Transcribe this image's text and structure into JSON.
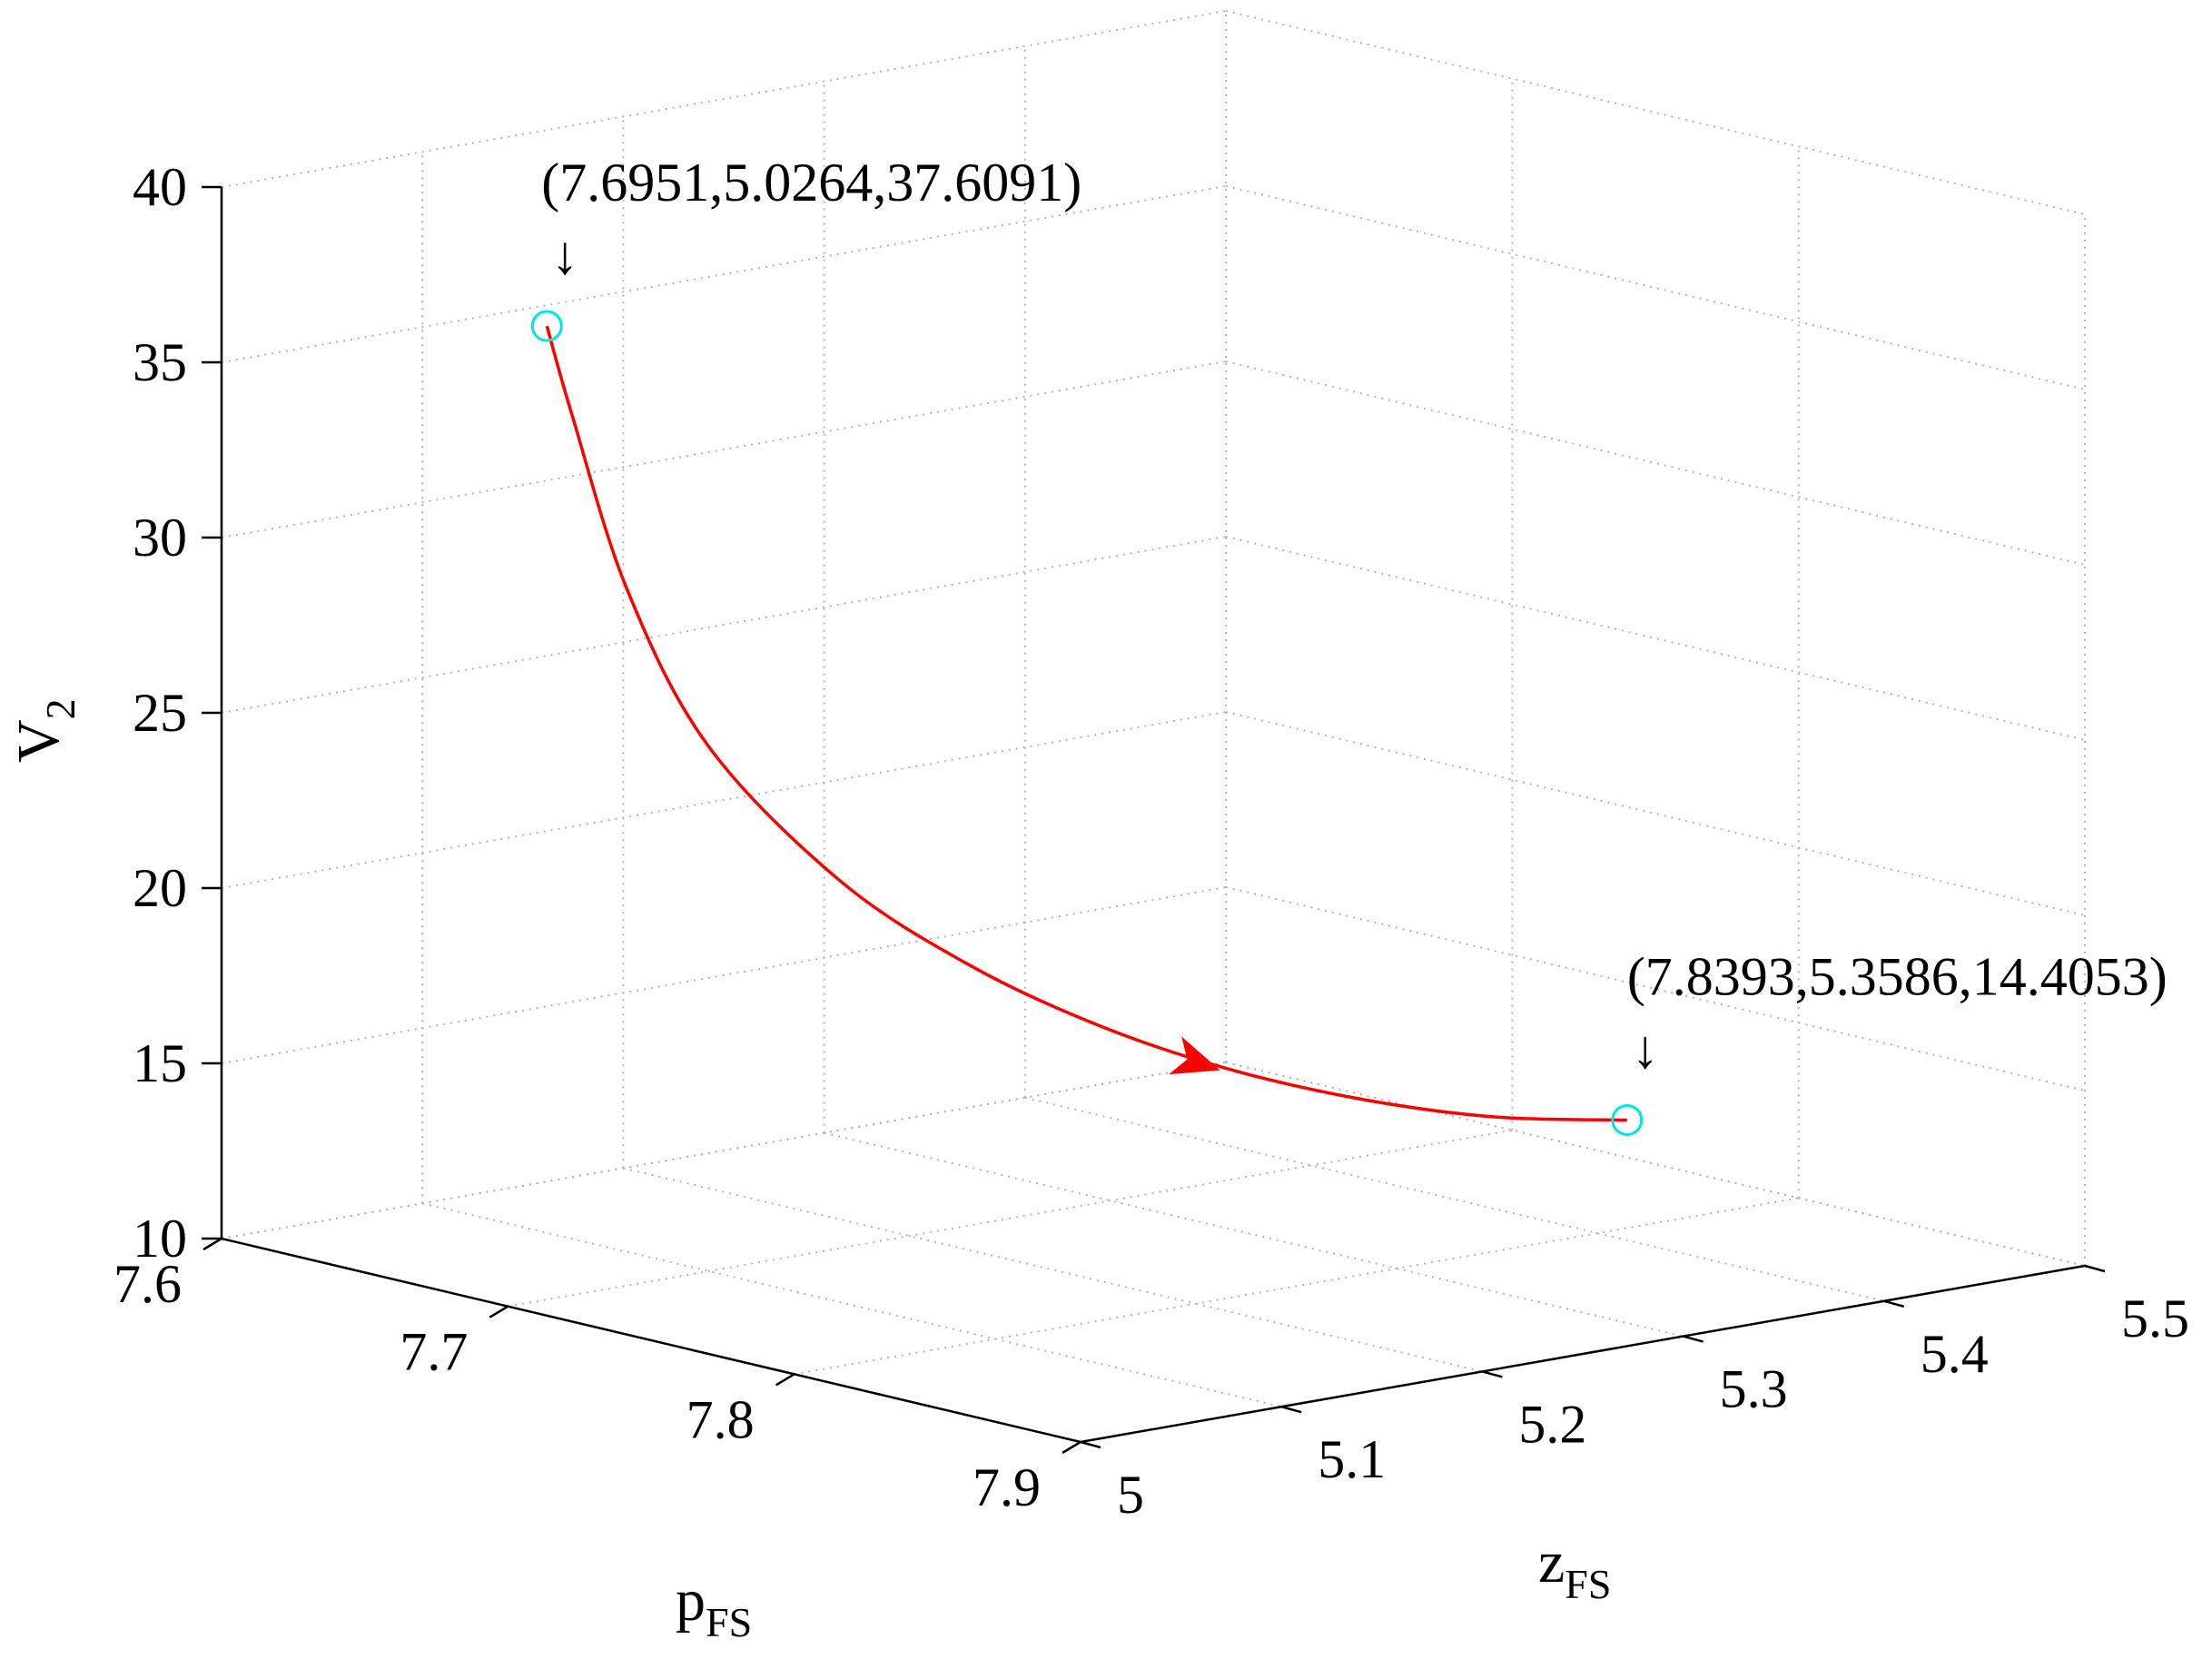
{
  "chart_data": {
    "type": "line3d",
    "title": "",
    "axes": {
      "x": {
        "label": "p",
        "label_sub": "FS",
        "range": [
          7.6,
          7.9
        ],
        "ticks": [
          "7.6",
          "7.7",
          "7.8",
          "7.9"
        ]
      },
      "y": {
        "label": "z",
        "label_sub": "FS",
        "range": [
          5.0,
          5.5
        ],
        "ticks": [
          "5",
          "5.1",
          "5.2",
          "5.3",
          "5.4",
          "5.5"
        ]
      },
      "z": {
        "label": "V",
        "label_sub": "2",
        "range": [
          10,
          40
        ],
        "ticks": [
          "10",
          "15",
          "20",
          "25",
          "30",
          "35",
          "40"
        ]
      }
    },
    "grid": true,
    "series": [
      {
        "color": "#ff0000",
        "points": [
          [
            7.8393,
            5.3586,
            14.4053
          ],
          [
            7.8215,
            5.3186,
            14.55
          ],
          [
            7.8037,
            5.2786,
            15.1
          ],
          [
            7.7859,
            5.2386,
            16.0
          ],
          [
            7.7681,
            5.1986,
            17.3
          ],
          [
            7.7503,
            5.1586,
            19.1
          ],
          [
            7.7325,
            5.1186,
            21.6
          ],
          [
            7.7147,
            5.0786,
            25.5
          ],
          [
            7.7049,
            5.0525,
            30.0
          ],
          [
            7.698,
            5.035,
            35.0
          ],
          [
            7.6951,
            5.0264,
            37.6091
          ]
        ]
      }
    ],
    "markers": [
      {
        "point": [
          7.6951,
          5.0264,
          37.6091
        ],
        "label": "(7.6951,5.0264,37.6091)",
        "color": "#00e5e5"
      },
      {
        "point": [
          7.8393,
          5.3586,
          14.4053
        ],
        "label": "(7.8393,5.3586,14.4053)",
        "color": "#00e5e5"
      }
    ],
    "annotation_arrow_glyph": "↓"
  }
}
